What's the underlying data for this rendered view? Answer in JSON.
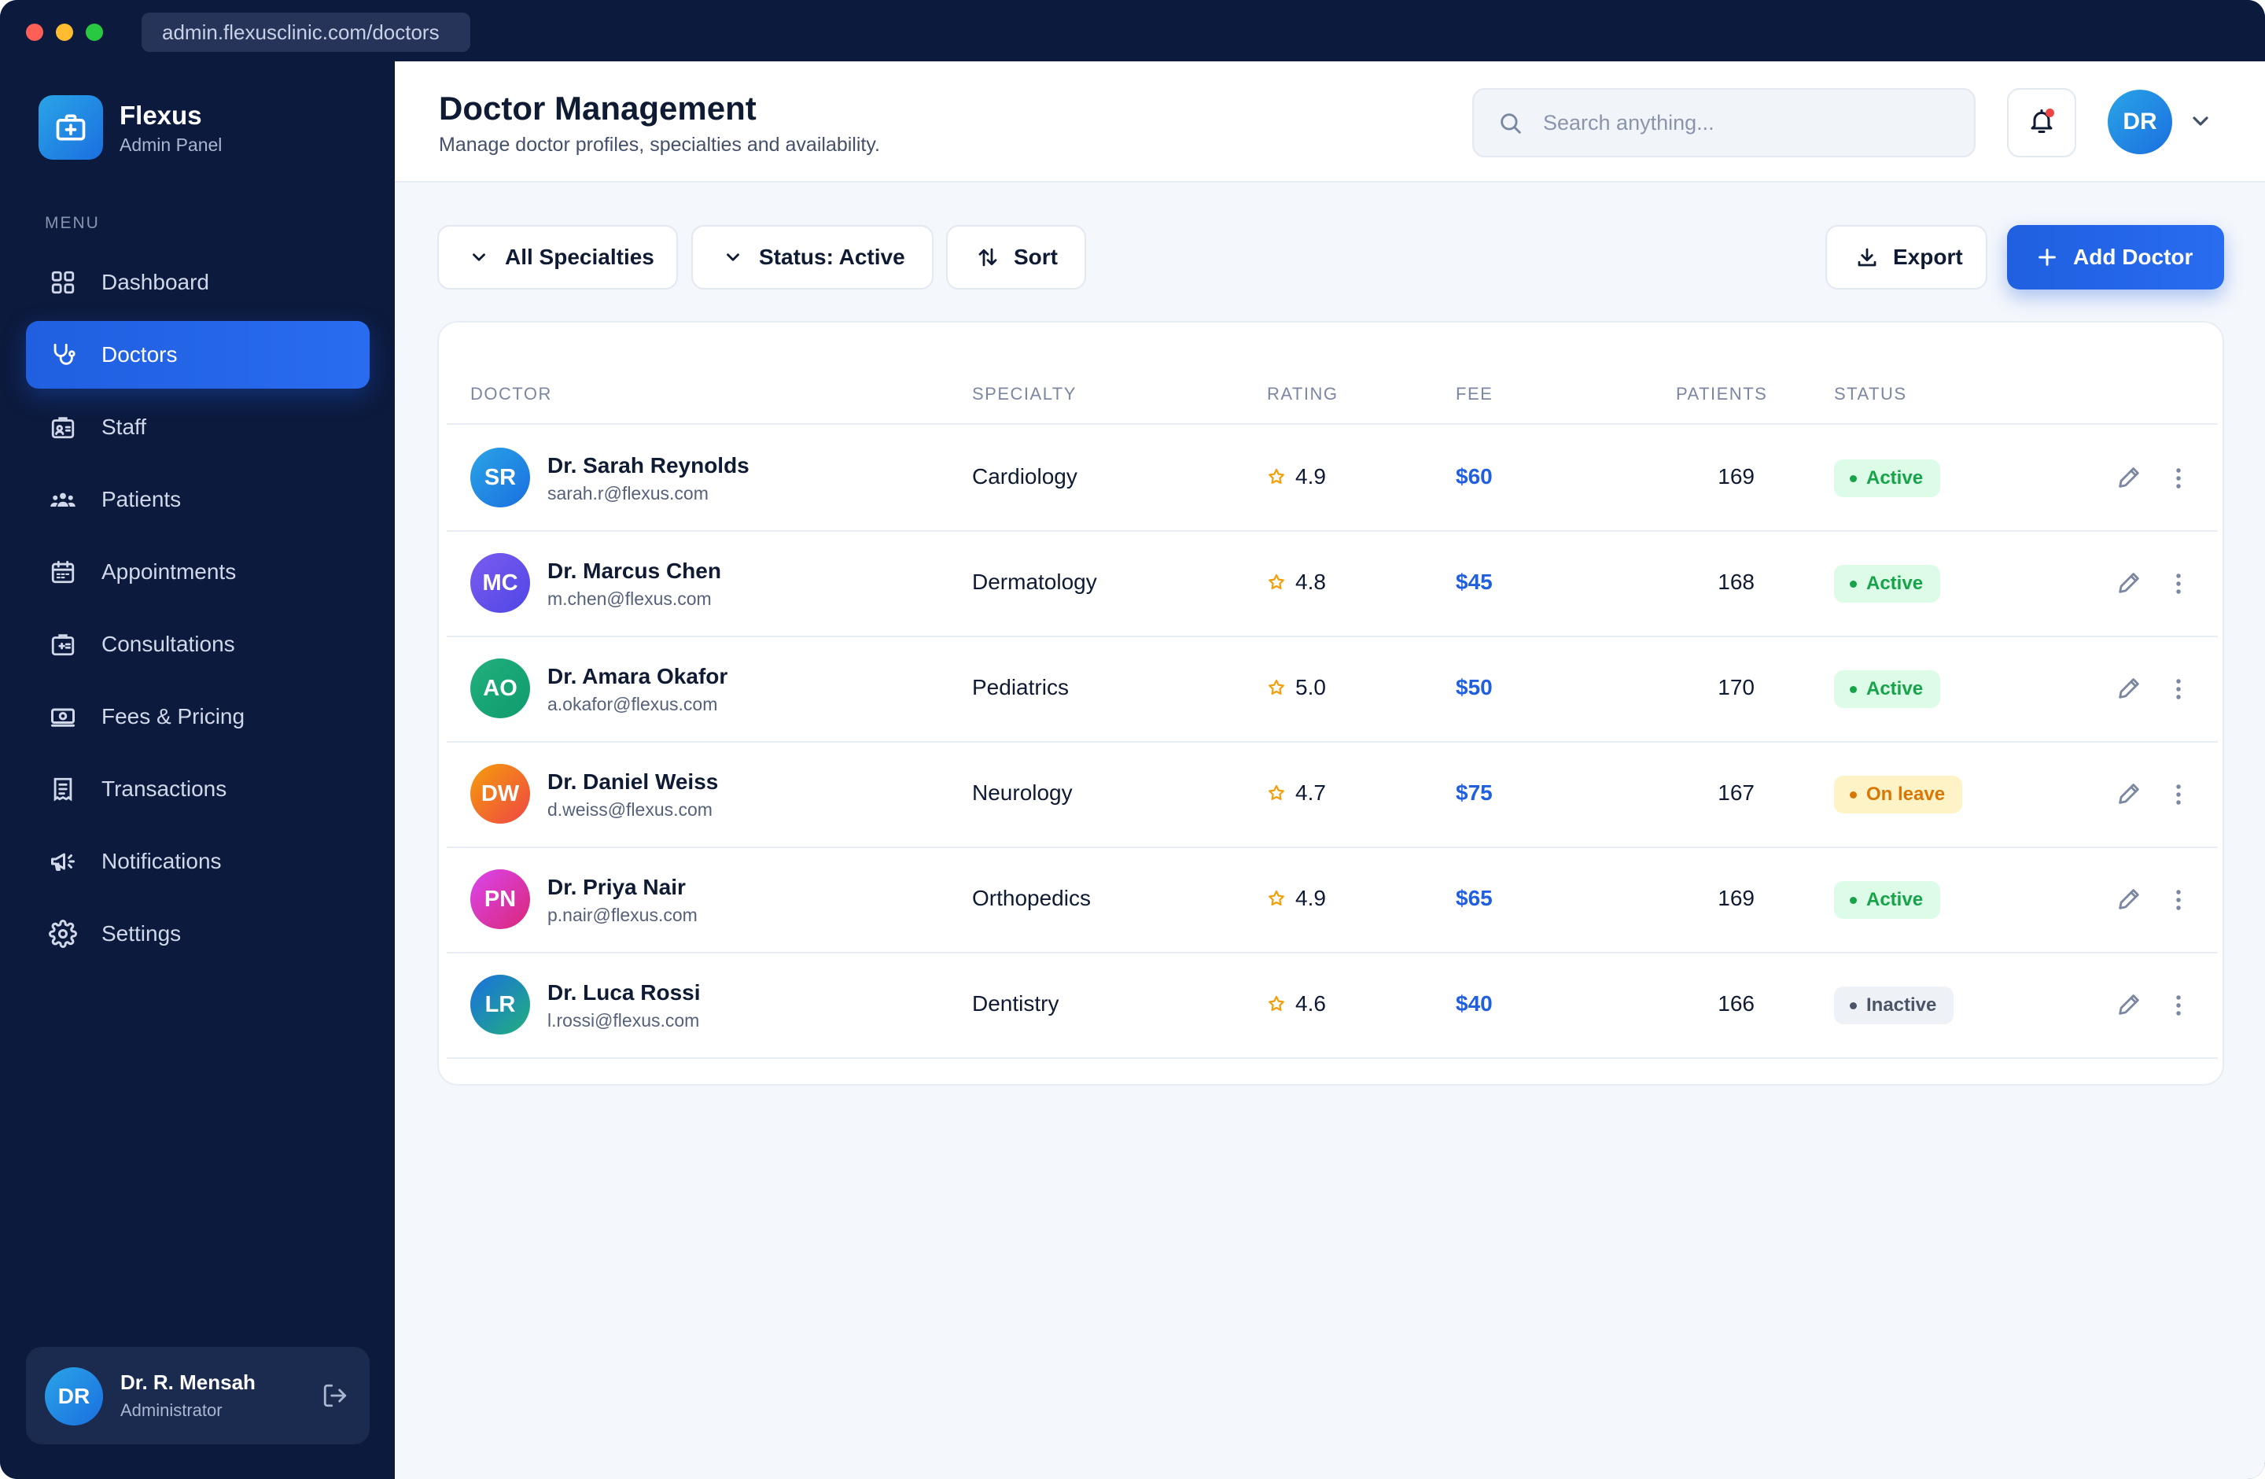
{
  "browser": {
    "url": "admin.flexusclinic.com/doctors"
  },
  "brand": {
    "name": "Flexus",
    "subtitle": "Admin Panel"
  },
  "sidebar": {
    "menu_label": "MENU",
    "items": [
      {
        "label": "Dashboard",
        "icon": "grid-icon"
      },
      {
        "label": "Doctors",
        "icon": "stethoscope-icon",
        "active": true
      },
      {
        "label": "Staff",
        "icon": "id-badge-icon"
      },
      {
        "label": "Patients",
        "icon": "users-icon"
      },
      {
        "label": "Appointments",
        "icon": "calendar-icon"
      },
      {
        "label": "Consultations",
        "icon": "clipboard-icon"
      },
      {
        "label": "Fees & Pricing",
        "icon": "cash-icon"
      },
      {
        "label": "Transactions",
        "icon": "receipt-icon"
      },
      {
        "label": "Notifications",
        "icon": "megaphone-icon"
      },
      {
        "label": "Settings",
        "icon": "gear-icon"
      }
    ],
    "user": {
      "initials": "DR",
      "name": "Dr. R. Mensah",
      "role": "Administrator"
    }
  },
  "header": {
    "title": "Doctor Management",
    "subtitle": "Manage doctor profiles, specialties and availability.",
    "search_placeholder": "Search anything...",
    "avatar_initials": "DR"
  },
  "toolbar": {
    "specialties": "All Specialties",
    "status": "Status: Active",
    "sort": "Sort",
    "export": "Export",
    "add": "Add Doctor"
  },
  "table": {
    "columns": [
      "DOCTOR",
      "SPECIALTY",
      "RATING",
      "FEE",
      "PATIENTS",
      "STATUS"
    ],
    "rows": [
      {
        "initials": "SR",
        "name": "Dr. Sarah Reynolds",
        "email": "sarah.r@flexus.com",
        "specialty": "Cardiology",
        "rating": "4.9",
        "fee": "$60",
        "patients": "169",
        "status": "Active"
      },
      {
        "initials": "MC",
        "name": "Dr. Marcus Chen",
        "email": "m.chen@flexus.com",
        "specialty": "Dermatology",
        "rating": "4.8",
        "fee": "$45",
        "patients": "168",
        "status": "Active"
      },
      {
        "initials": "AO",
        "name": "Dr. Amara Okafor",
        "email": "a.okafor@flexus.com",
        "specialty": "Pediatrics",
        "rating": "5.0",
        "fee": "$50",
        "patients": "170",
        "status": "Active"
      },
      {
        "initials": "DW",
        "name": "Dr. Daniel Weiss",
        "email": "d.weiss@flexus.com",
        "specialty": "Neurology",
        "rating": "4.7",
        "fee": "$75",
        "patients": "167",
        "status": "On leave"
      },
      {
        "initials": "PN",
        "name": "Dr. Priya Nair",
        "email": "p.nair@flexus.com",
        "specialty": "Orthopedics",
        "rating": "4.9",
        "fee": "$65",
        "patients": "169",
        "status": "Active"
      },
      {
        "initials": "LR",
        "name": "Dr. Luca Rossi",
        "email": "l.rossi@flexus.com",
        "specialty": "Dentistry",
        "rating": "4.6",
        "fee": "$40",
        "patients": "166",
        "status": "Inactive"
      }
    ]
  },
  "colors": {
    "sidebar_bg": "#0c1a3d",
    "accent": "#1f5fe0",
    "active_status": "#16a34a",
    "leave_status": "#d97706",
    "star": "#f59e0b"
  }
}
